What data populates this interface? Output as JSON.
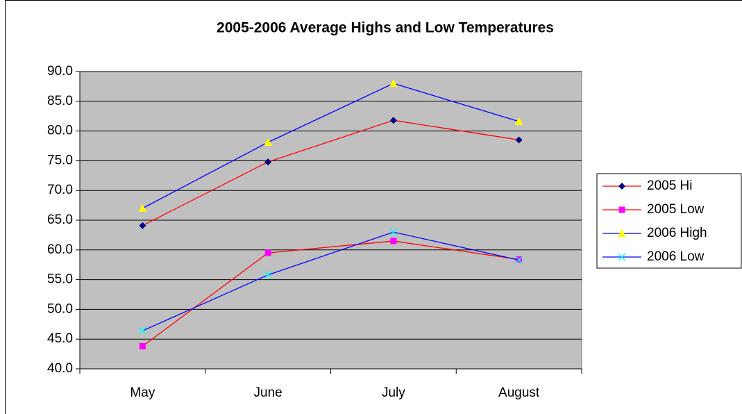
{
  "chart_data": {
    "type": "line",
    "title": "2005-2006 Average Highs and Low Temperatures",
    "categories": [
      "May",
      "June",
      "July",
      "August"
    ],
    "series": [
      {
        "name": "2005 Hi",
        "color": "#ff0000",
        "marker": "diamond",
        "marker_color": "#000080",
        "values": [
          64.1,
          74.8,
          81.8,
          78.5
        ]
      },
      {
        "name": "2005 Low",
        "color": "#ff0000",
        "marker": "square",
        "marker_color": "#ff00ff",
        "values": [
          43.8,
          59.5,
          61.5,
          58.4
        ]
      },
      {
        "name": "2006 High",
        "color": "#0000ff",
        "marker": "triangle",
        "marker_color": "#ffff00",
        "values": [
          67.0,
          78.1,
          88.0,
          81.6
        ]
      },
      {
        "name": "2006 Low",
        "color": "#0000ff",
        "marker": "x",
        "marker_color": "#00ffff",
        "values": [
          46.4,
          55.8,
          63.0,
          58.3
        ]
      }
    ],
    "ylim": [
      40,
      90
    ],
    "yticks": [
      {
        "value": 40,
        "label": "40.0"
      },
      {
        "value": 45,
        "label": "45.0"
      },
      {
        "value": 50,
        "label": "50.0"
      },
      {
        "value": 55,
        "label": "55.0"
      },
      {
        "value": 60,
        "label": "60.0"
      },
      {
        "value": 65,
        "label": "65.0"
      },
      {
        "value": 70,
        "label": "70.0"
      },
      {
        "value": 75,
        "label": "75.0"
      },
      {
        "value": 80,
        "label": "80.0"
      },
      {
        "value": 85,
        "label": "85.0"
      },
      {
        "value": 90,
        "label": "90.0"
      }
    ],
    "grid": true,
    "plot_background": "#c0c0c0",
    "legend": "right"
  }
}
